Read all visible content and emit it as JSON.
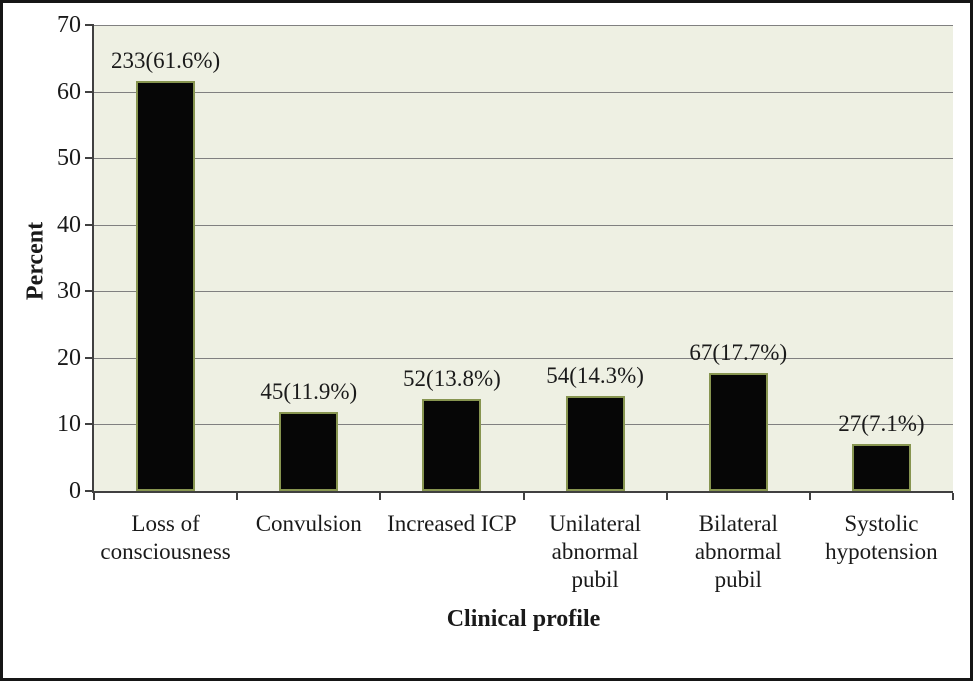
{
  "chart_data": {
    "type": "bar",
    "title": "",
    "xlabel": "Clinical profile",
    "ylabel": "Percent",
    "ylim": [
      0,
      70
    ],
    "yticks": [
      "0",
      "10",
      "20",
      "30",
      "40",
      "50",
      "60",
      "70"
    ],
    "grid": true,
    "legend": false,
    "categories": [
      "Loss of\nconsciousness",
      "Convulsion",
      "Increased ICP",
      "Unilateral\nabnormal\npubil",
      "Bilateral\nabnormal\npubil",
      "Systolic\nhypotension"
    ],
    "counts": [
      233,
      45,
      52,
      54,
      67,
      27
    ],
    "values": [
      61.6,
      11.9,
      13.8,
      14.3,
      17.7,
      7.1
    ],
    "bar_labels": [
      "233(61.6%)",
      "45(11.9%)",
      "52(13.8%)",
      "54(14.3%)",
      "67(17.7%)",
      "27(7.1%)"
    ],
    "colors": {
      "bar_fill": "#060606",
      "bar_border": "#879550",
      "plot_background": "#eef0e3",
      "gridline": "#808080",
      "axis": "#404040",
      "text": "#1a1a1a",
      "figure_border": "#161616",
      "figure_background": "#ffffff"
    }
  }
}
